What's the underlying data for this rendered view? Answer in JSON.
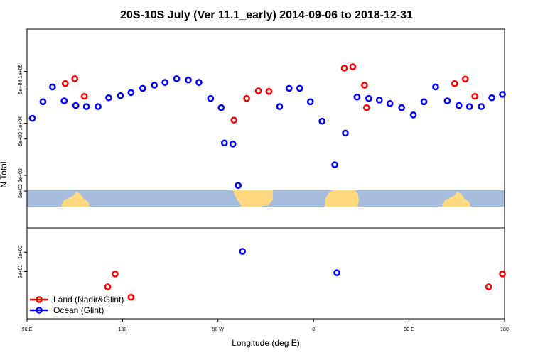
{
  "chart_data": {
    "type": "scatter",
    "title": "20S-10S July (Ver 11.1_early)   2014-09-06 to 2018-12-31",
    "xlabel": "Longitude (deg E)",
    "ylabel": "N Total",
    "x_ticks": [
      {
        "value": 90,
        "label": "90 E"
      },
      {
        "value": 180,
        "label": "180"
      },
      {
        "value": 270,
        "label": "90 W"
      },
      {
        "value": 360,
        "label": "0"
      },
      {
        "value": 450,
        "label": "90 E"
      },
      {
        "value": 540,
        "label": "180"
      }
    ],
    "xlim": [
      90,
      540
    ],
    "y_scale": "log",
    "upper_panel": {
      "ylim": [
        1000,
        160000
      ],
      "y_ticks": [
        {
          "value": 100000,
          "label": "1e+05"
        },
        {
          "value": 50000,
          "label": "5e+04"
        },
        {
          "value": 10000,
          "label": "1e+04"
        },
        {
          "value": 5000,
          "label": "5e+03"
        },
        {
          "value": 1000,
          "label": "1e+03"
        },
        {
          "value": 500,
          "label": "5e+02"
        }
      ]
    },
    "lower_panel": {
      "ylim": [
        12,
        300
      ],
      "y_ticks": [
        {
          "value": 100,
          "label": "1e+02"
        },
        {
          "value": 50,
          "label": "5e+01"
        }
      ]
    },
    "series": [
      {
        "name": "Land (Nadir&Glint)",
        "color": "#ff0000",
        "upper": [
          {
            "x": 126,
            "y": 58000
          },
          {
            "x": 135,
            "y": 72000
          },
          {
            "x": 144,
            "y": 33000
          },
          {
            "x": 285,
            "y": 11500
          },
          {
            "x": 297,
            "y": 30000
          },
          {
            "x": 308,
            "y": 42000
          },
          {
            "x": 318,
            "y": 41000
          },
          {
            "x": 389,
            "y": 115000
          },
          {
            "x": 397,
            "y": 122000
          },
          {
            "x": 408,
            "y": 54000
          },
          {
            "x": 410,
            "y": 20000
          },
          {
            "x": 493,
            "y": 58000
          },
          {
            "x": 503,
            "y": 71000
          },
          {
            "x": 512,
            "y": 33000
          }
        ],
        "lower": [
          {
            "x": 166,
            "y": 29
          },
          {
            "x": 173,
            "y": 46
          },
          {
            "x": 188,
            "y": 20
          },
          {
            "x": 525,
            "y": 29
          },
          {
            "x": 538,
            "y": 46
          }
        ]
      },
      {
        "name": "Ocean (Glint)",
        "color": "#0000ff",
        "upper": [
          {
            "x": 95,
            "y": 12500
          },
          {
            "x": 105,
            "y": 26000
          },
          {
            "x": 114,
            "y": 50000
          },
          {
            "x": 125,
            "y": 27000
          },
          {
            "x": 136,
            "y": 22000
          },
          {
            "x": 146,
            "y": 21000
          },
          {
            "x": 157,
            "y": 21000
          },
          {
            "x": 167,
            "y": 31000
          },
          {
            "x": 178,
            "y": 34000
          },
          {
            "x": 188,
            "y": 39000
          },
          {
            "x": 199,
            "y": 47000
          },
          {
            "x": 210,
            "y": 54000
          },
          {
            "x": 220,
            "y": 61000
          },
          {
            "x": 231,
            "y": 72000
          },
          {
            "x": 242,
            "y": 68000
          },
          {
            "x": 252,
            "y": 61000
          },
          {
            "x": 263,
            "y": 30000
          },
          {
            "x": 273,
            "y": 20000
          },
          {
            "x": 276,
            "y": 4200
          },
          {
            "x": 284,
            "y": 4000
          },
          {
            "x": 289,
            "y": 640
          },
          {
            "x": 328,
            "y": 21000
          },
          {
            "x": 337,
            "y": 47000
          },
          {
            "x": 347,
            "y": 47000
          },
          {
            "x": 357,
            "y": 26000
          },
          {
            "x": 368,
            "y": 11000
          },
          {
            "x": 380,
            "y": 1600
          },
          {
            "x": 390,
            "y": 6500
          },
          {
            "x": 401,
            "y": 32000
          },
          {
            "x": 412,
            "y": 30000
          },
          {
            "x": 422,
            "y": 28000
          },
          {
            "x": 432,
            "y": 24000
          },
          {
            "x": 443,
            "y": 20000
          },
          {
            "x": 454,
            "y": 14500
          },
          {
            "x": 464,
            "y": 26000
          },
          {
            "x": 475,
            "y": 50000
          },
          {
            "x": 486,
            "y": 27000
          },
          {
            "x": 497,
            "y": 22000
          },
          {
            "x": 507,
            "y": 21000
          },
          {
            "x": 518,
            "y": 21000
          },
          {
            "x": 528,
            "y": 31000
          },
          {
            "x": 538,
            "y": 36000
          }
        ],
        "lower": [
          {
            "x": 293,
            "y": 103
          },
          {
            "x": 382,
            "y": 48
          }
        ]
      }
    ],
    "legend": {
      "position": "bottom-left",
      "entries": [
        {
          "label": "Land (Nadir&Glint)",
          "color": "#ff0000"
        },
        {
          "label": "Ocean (Glint)",
          "color": "#0000ff"
        }
      ]
    },
    "background_map": {
      "ocean_color": "#a7bddd",
      "land_color": "#ffd980"
    },
    "grid": false
  }
}
